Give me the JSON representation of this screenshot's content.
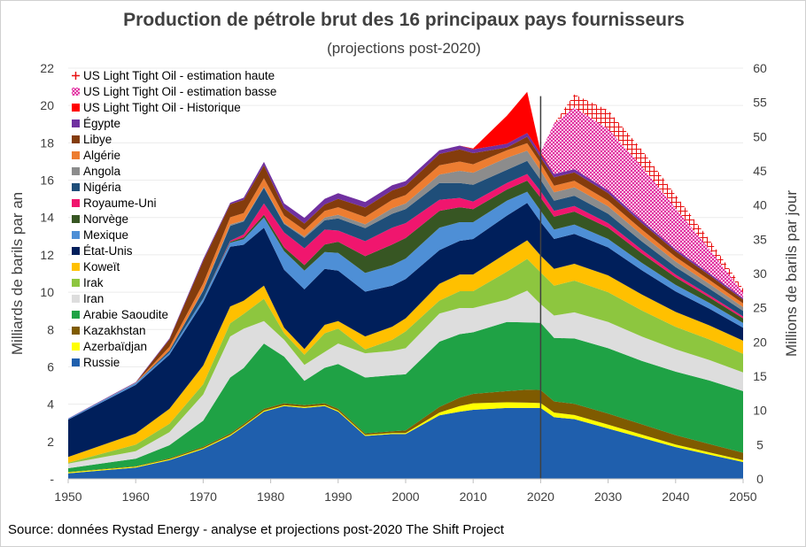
{
  "chart_data": {
    "type": "area",
    "stacked": true,
    "title": "Production de pétrole brut des 16 principaux pays fournisseurs",
    "subtitle": "(projections post-2020)",
    "source": "Source: données Rystad Energy - analyse et projections post-2020  The Shift Project",
    "xlabel": "",
    "ylabel": "Milliards de barils par an",
    "y2label": "Millions de barils par jour",
    "xlim": [
      1950,
      2050
    ],
    "ylim": [
      0,
      22
    ],
    "y2lim": [
      0,
      60
    ],
    "x_ticks": [
      "1950",
      "1960",
      "1970",
      "1980",
      "1990",
      "2000",
      "2010",
      "2020",
      "2030",
      "2040",
      "2050"
    ],
    "y_ticks": [
      "-",
      "2",
      "4",
      "6",
      "8",
      "10",
      "12",
      "14",
      "16",
      "18",
      "20",
      "22"
    ],
    "y2_ticks": [
      "0",
      "5",
      "10",
      "15",
      "20",
      "25",
      "30",
      "35",
      "40",
      "45",
      "50",
      "55",
      "60"
    ],
    "projection_start": 2020,
    "key_years": [
      1950,
      1960,
      1965,
      1970,
      1974,
      1976,
      1979,
      1982,
      1985,
      1988,
      1990,
      1994,
      1998,
      2000,
      2005,
      2008,
      2010,
      2015,
      2018,
      2020,
      2022,
      2025,
      2030,
      2035,
      2040,
      2045,
      2050
    ],
    "series": [
      {
        "name": "Russie",
        "color": "#1F5FAD",
        "values": [
          0.3,
          0.6,
          1.0,
          1.6,
          2.3,
          2.8,
          3.6,
          3.9,
          3.8,
          3.9,
          3.6,
          2.3,
          2.4,
          2.4,
          3.4,
          3.6,
          3.7,
          3.8,
          3.8,
          3.8,
          3.3,
          3.2,
          2.7,
          2.2,
          1.7,
          1.3,
          0.9
        ]
      },
      {
        "name": "Azerbaïdjan",
        "color": "#FFFF00",
        "values": [
          0.05,
          0.05,
          0.05,
          0.05,
          0.05,
          0.05,
          0.05,
          0.05,
          0.05,
          0.05,
          0.05,
          0.05,
          0.05,
          0.05,
          0.15,
          0.3,
          0.35,
          0.3,
          0.28,
          0.26,
          0.25,
          0.22,
          0.2,
          0.17,
          0.14,
          0.12,
          0.1
        ]
      },
      {
        "name": "Kazakhstan",
        "color": "#7F5B00",
        "values": [
          0.02,
          0.03,
          0.05,
          0.07,
          0.08,
          0.09,
          0.1,
          0.1,
          0.1,
          0.1,
          0.1,
          0.08,
          0.1,
          0.15,
          0.3,
          0.45,
          0.5,
          0.6,
          0.7,
          0.7,
          0.6,
          0.6,
          0.6,
          0.55,
          0.5,
          0.45,
          0.4
        ]
      },
      {
        "name": "Arabie Saoudite",
        "color": "#1FA245",
        "values": [
          0.2,
          0.4,
          0.7,
          1.4,
          3.0,
          3.0,
          3.5,
          2.5,
          1.3,
          1.9,
          2.4,
          3.0,
          3.0,
          3.0,
          3.5,
          3.4,
          3.3,
          3.7,
          3.6,
          3.6,
          3.4,
          3.5,
          3.5,
          3.4,
          3.4,
          3.4,
          3.3
        ]
      },
      {
        "name": "Iran",
        "color": "#DDDDDD",
        "values": [
          0.25,
          0.4,
          0.7,
          1.4,
          2.2,
          2.1,
          1.2,
          0.9,
          0.85,
          0.85,
          1.1,
          1.3,
          1.3,
          1.4,
          1.5,
          1.4,
          1.3,
          1.2,
          1.7,
          1.0,
          1.2,
          1.4,
          1.4,
          1.3,
          1.2,
          1.1,
          1.0
        ]
      },
      {
        "name": "Irak",
        "color": "#8DC63F",
        "values": [
          0.05,
          0.35,
          0.45,
          0.55,
          0.7,
          0.8,
          1.2,
          0.35,
          0.55,
          1.0,
          0.8,
          0.2,
          0.6,
          0.9,
          0.7,
          0.9,
          0.9,
          1.5,
          1.7,
          1.7,
          1.6,
          1.7,
          1.6,
          1.4,
          1.2,
          1.1,
          1.0
        ]
      },
      {
        "name": "Koweït",
        "color": "#FFC000",
        "values": [
          0.3,
          0.6,
          0.8,
          1.0,
          0.9,
          0.7,
          0.7,
          0.3,
          0.3,
          0.45,
          0.4,
          0.7,
          0.7,
          0.7,
          0.9,
          0.9,
          0.9,
          1.0,
          1.0,
          0.9,
          0.9,
          0.9,
          0.9,
          0.85,
          0.8,
          0.75,
          0.7
        ]
      },
      {
        "name": "État-Unis",
        "color": "#001F5B",
        "values": [
          2.0,
          2.6,
          2.9,
          3.4,
          3.2,
          3.0,
          3.1,
          3.1,
          3.2,
          3.0,
          2.7,
          2.4,
          2.2,
          2.1,
          1.8,
          1.8,
          1.9,
          2.0,
          2.0,
          1.8,
          1.6,
          1.6,
          1.5,
          1.3,
          1.1,
          0.9,
          0.7
        ]
      },
      {
        "name": "Mexique",
        "color": "#4E8FD6",
        "values": [
          0.05,
          0.1,
          0.12,
          0.18,
          0.22,
          0.3,
          0.55,
          1.0,
          1.0,
          0.9,
          0.95,
          1.0,
          1.1,
          1.1,
          1.2,
          1.0,
          0.9,
          0.8,
          0.6,
          0.6,
          0.5,
          0.5,
          0.45,
          0.4,
          0.35,
          0.3,
          0.25
        ]
      },
      {
        "name": "Norvège",
        "color": "#375623",
        "values": [
          0,
          0,
          0,
          0.02,
          0.05,
          0.1,
          0.15,
          0.2,
          0.3,
          0.4,
          0.6,
          0.9,
          1.1,
          1.1,
          0.9,
          0.8,
          0.7,
          0.6,
          0.6,
          0.7,
          0.7,
          0.7,
          0.6,
          0.5,
          0.4,
          0.3,
          0.25
        ]
      },
      {
        "name": "Royaume-Uni",
        "color": "#F0166E",
        "values": [
          0,
          0,
          0,
          0,
          0.05,
          0.15,
          0.6,
          0.8,
          0.9,
          0.8,
          0.6,
          0.8,
          0.9,
          0.8,
          0.6,
          0.5,
          0.4,
          0.35,
          0.35,
          0.35,
          0.3,
          0.3,
          0.25,
          0.2,
          0.15,
          0.12,
          0.1
        ]
      },
      {
        "name": "Nigéria",
        "color": "#1F4E79",
        "values": [
          0,
          0,
          0.1,
          0.4,
          0.8,
          0.7,
          0.85,
          0.45,
          0.55,
          0.5,
          0.65,
          0.7,
          0.75,
          0.75,
          0.9,
          0.8,
          0.9,
          0.7,
          0.7,
          0.6,
          0.55,
          0.55,
          0.5,
          0.45,
          0.4,
          0.35,
          0.3
        ]
      },
      {
        "name": "Angola",
        "color": "#8C8C8C",
        "values": [
          0,
          0,
          0,
          0.05,
          0.08,
          0.05,
          0.05,
          0.05,
          0.08,
          0.15,
          0.2,
          0.2,
          0.3,
          0.3,
          0.45,
          0.65,
          0.65,
          0.65,
          0.55,
          0.5,
          0.45,
          0.45,
          0.4,
          0.35,
          0.3,
          0.25,
          0.2
        ]
      },
      {
        "name": "Algérie",
        "color": "#ED7D31",
        "values": [
          0,
          0.02,
          0.2,
          0.35,
          0.38,
          0.4,
          0.45,
          0.4,
          0.35,
          0.35,
          0.4,
          0.4,
          0.45,
          0.45,
          0.5,
          0.5,
          0.45,
          0.4,
          0.4,
          0.4,
          0.35,
          0.35,
          0.3,
          0.28,
          0.25,
          0.22,
          0.2
        ]
      },
      {
        "name": "Libye",
        "color": "#843C0C",
        "values": [
          0,
          0,
          0.4,
          1.2,
          0.7,
          0.7,
          0.7,
          0.4,
          0.35,
          0.35,
          0.45,
          0.5,
          0.5,
          0.5,
          0.6,
          0.65,
          0.6,
          0.15,
          0.35,
          0.3,
          0.45,
          0.45,
          0.4,
          0.35,
          0.3,
          0.25,
          0.2
        ]
      },
      {
        "name": "Égypte",
        "color": "#7030A0",
        "values": [
          0.02,
          0.03,
          0.05,
          0.1,
          0.08,
          0.12,
          0.18,
          0.25,
          0.3,
          0.3,
          0.3,
          0.3,
          0.28,
          0.25,
          0.2,
          0.2,
          0.2,
          0.2,
          0.2,
          0.2,
          0.18,
          0.17,
          0.15,
          0.13,
          0.11,
          0.1,
          0.08
        ]
      },
      {
        "name": "US Light Tight Oil - Historique",
        "color": "#FF0000",
        "values": [
          0,
          0,
          0,
          0,
          0,
          0,
          0,
          0,
          0,
          0,
          0,
          0,
          0,
          0,
          0,
          0,
          0.05,
          1.5,
          2.2,
          0.1,
          0,
          0,
          0,
          0,
          0,
          0,
          0
        ]
      },
      {
        "name": "US Light Tight Oil - estimation basse",
        "color": "#E0209A",
        "pattern": "crosshatch",
        "values": [
          0,
          0,
          0,
          0,
          0,
          0,
          0,
          0,
          0,
          0,
          0,
          0,
          0,
          0,
          0,
          0,
          0,
          0,
          0,
          0,
          2.7,
          3.3,
          3.3,
          2.9,
          2.2,
          1.3,
          0.3
        ]
      },
      {
        "name": "US Light Tight Oil - estimation haute",
        "color": "#E81010",
        "pattern": "grid",
        "values": [
          0,
          0,
          0,
          0,
          0,
          0,
          0,
          0,
          0,
          0,
          0,
          0,
          0,
          0,
          0,
          0,
          0,
          0,
          0,
          0,
          0,
          0.7,
          1.0,
          0.9,
          0.7,
          0.5,
          0.2
        ]
      }
    ],
    "legend_order": [
      "US Light Tight Oil - estimation haute",
      "US Light Tight Oil - estimation basse",
      "US Light Tight Oil - Historique",
      "Égypte",
      "Libye",
      "Algérie",
      "Angola",
      "Nigéria",
      "Royaume-Uni",
      "Norvège",
      "Mexique",
      "État-Unis",
      "Koweït",
      "Irak",
      "Iran",
      "Arabie Saoudite",
      "Kazakhstan",
      "Azerbaïdjan",
      "Russie"
    ],
    "legend_position": "top-left"
  }
}
